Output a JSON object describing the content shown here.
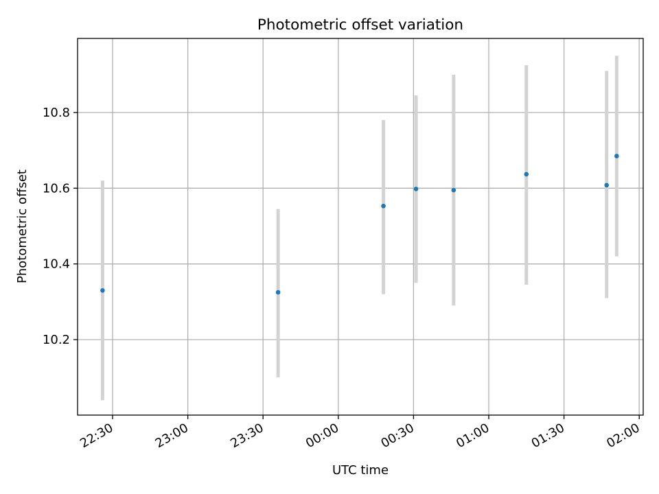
{
  "chart_data": {
    "type": "scatter",
    "title": "Photometric offset variation",
    "xlabel": "UTC time",
    "ylabel": "Photometric offset",
    "x_tick_labels": [
      "22:30",
      "23:00",
      "23:30",
      "00:00",
      "00:30",
      "01:00",
      "01:30",
      "02:00"
    ],
    "y_tick_labels": [
      "10.2",
      "10.4",
      "10.6",
      "10.8"
    ],
    "y_ticks": [
      10.2,
      10.4,
      10.6,
      10.8
    ],
    "ylim": [
      10.0,
      11.0
    ],
    "grid": true,
    "colors": {
      "points": "#1f77b4",
      "error_bars": "#d3d3d3",
      "grid": "#b0b0b0"
    },
    "points": [
      {
        "time": "22:26",
        "value": 10.33,
        "low": 10.04,
        "high": 10.62
      },
      {
        "time": "23:36",
        "value": 10.325,
        "low": 10.1,
        "high": 10.545
      },
      {
        "time": "00:18",
        "value": 10.553,
        "low": 10.32,
        "high": 10.78
      },
      {
        "time": "00:31",
        "value": 10.598,
        "low": 10.35,
        "high": 10.845
      },
      {
        "time": "00:46",
        "value": 10.595,
        "low": 10.29,
        "high": 10.9
      },
      {
        "time": "01:15",
        "value": 10.637,
        "low": 10.345,
        "high": 10.925
      },
      {
        "time": "01:47",
        "value": 10.608,
        "low": 10.31,
        "high": 10.91
      },
      {
        "time": "01:51",
        "value": 10.685,
        "low": 10.42,
        "high": 10.95
      }
    ]
  }
}
